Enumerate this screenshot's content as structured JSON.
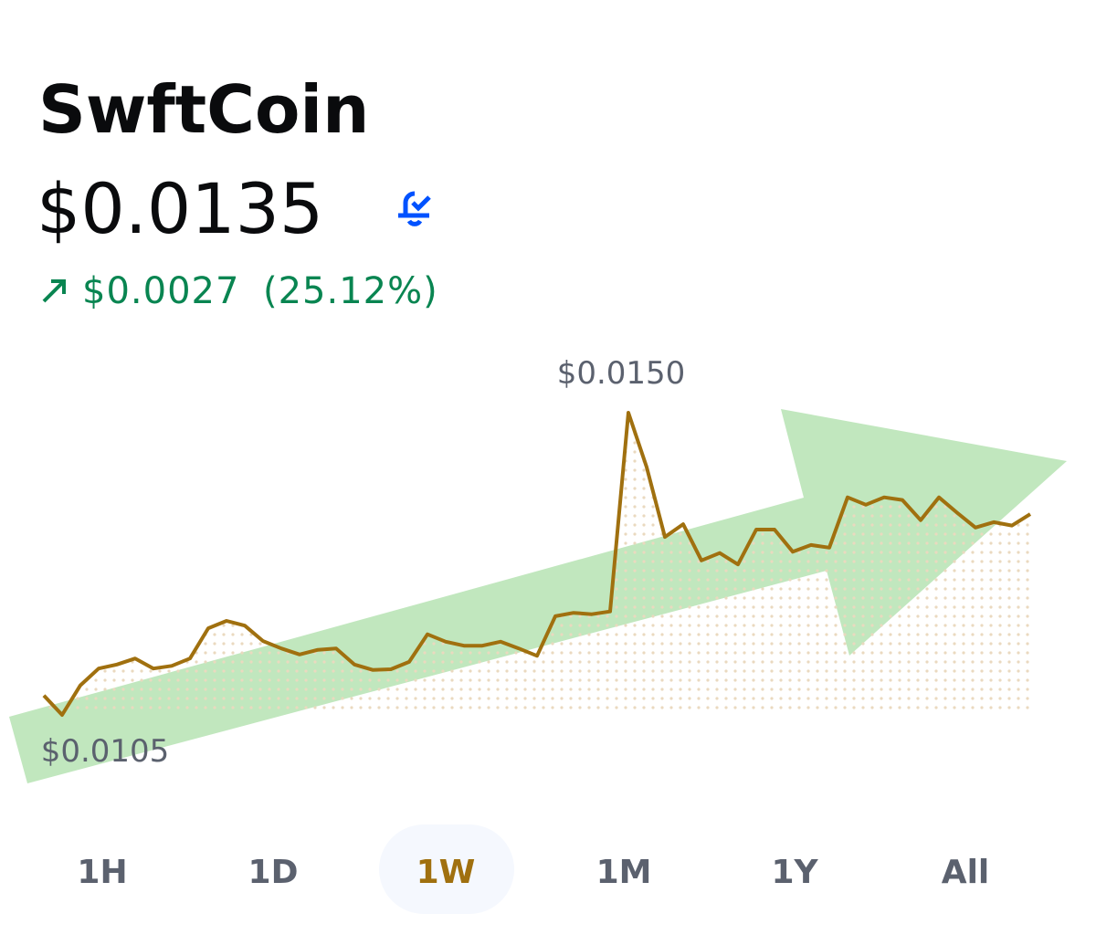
{
  "header": {
    "title": "SwftCoin",
    "price": "$0.0135",
    "change": "$0.0027",
    "change_pct": "(25.12%)"
  },
  "chart_data": {
    "type": "line",
    "color": "#a0700f",
    "max_label": "$0.0150",
    "min_label": "$0.0105",
    "ylim": [
      0.0105,
      0.015
    ],
    "values": [
      0.01079,
      0.0105,
      0.01094,
      0.01119,
      0.01125,
      0.01134,
      0.01119,
      0.01123,
      0.01134,
      0.01179,
      0.0119,
      0.01183,
      0.0116,
      0.01149,
      0.0114,
      0.01147,
      0.01149,
      0.01125,
      0.01117,
      0.01118,
      0.01129,
      0.0117,
      0.01159,
      0.01153,
      0.01153,
      0.01159,
      0.01149,
      0.01138,
      0.01197,
      0.01202,
      0.012,
      0.01204,
      0.015,
      0.01419,
      0.01315,
      0.01334,
      0.0128,
      0.01291,
      0.01274,
      0.01326,
      0.01326,
      0.01293,
      0.01303,
      0.01299,
      0.01374,
      0.01363,
      0.01374,
      0.0137,
      0.0134,
      0.01374,
      0.01351,
      0.01329,
      0.01337,
      0.01332,
      0.01349
    ]
  },
  "periods": {
    "items": [
      "1H",
      "1D",
      "1W",
      "1M",
      "1Y",
      "All"
    ],
    "selected": 2
  }
}
